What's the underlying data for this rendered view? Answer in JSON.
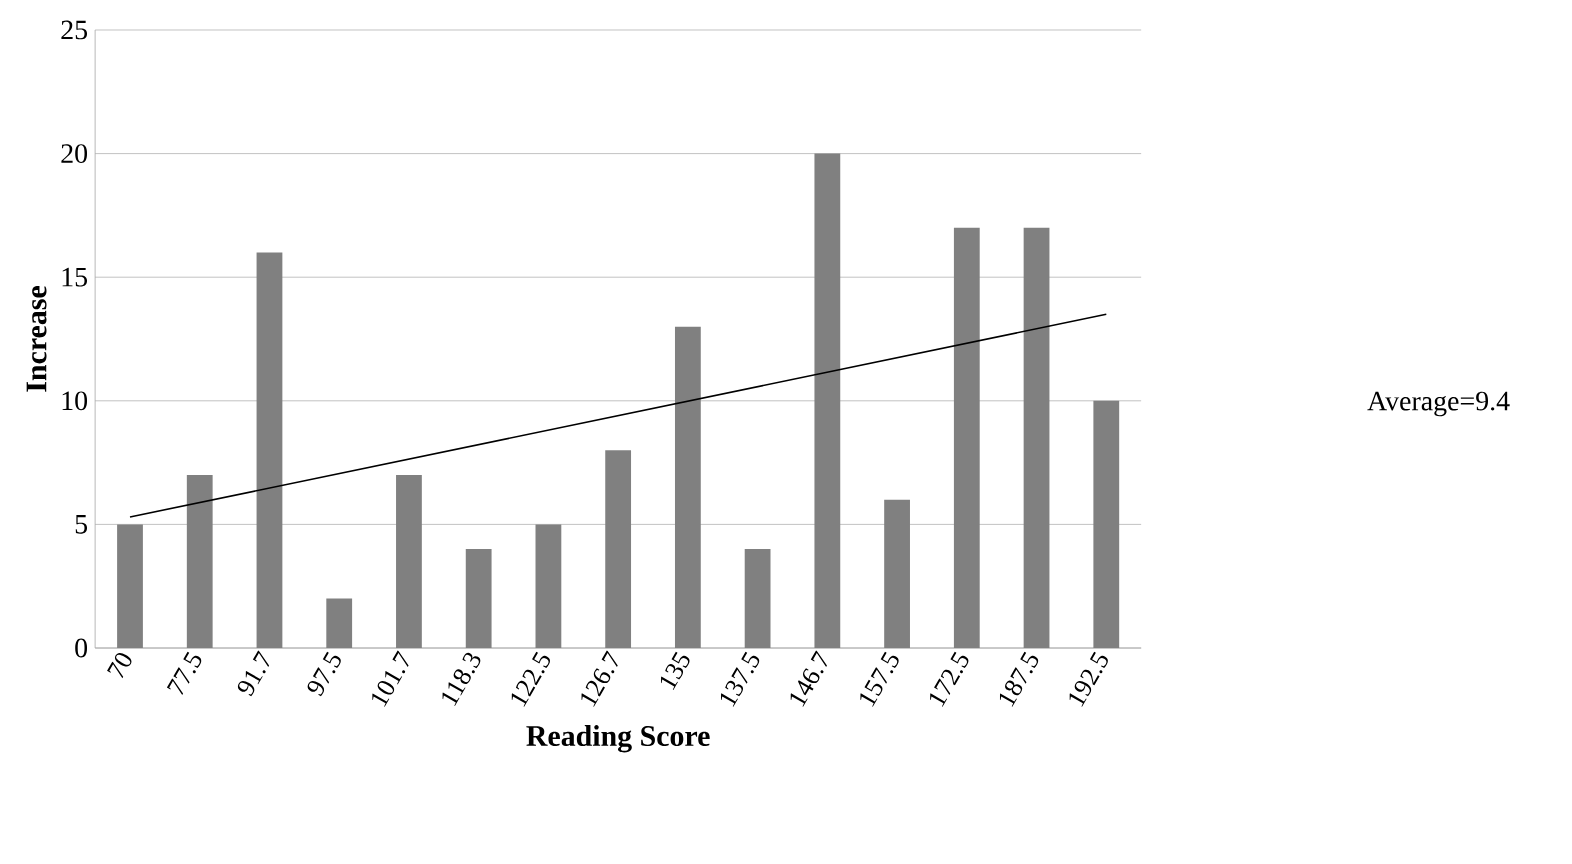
{
  "chart_data": {
    "type": "bar",
    "xlabel": "Reading Score",
    "ylabel": "Increase",
    "categories": [
      "70",
      "77.5",
      "91.7",
      "97.5",
      "101.7",
      "118.3",
      "122.5",
      "126.7",
      "135",
      "137.5",
      "146.7",
      "157.5",
      "172.5",
      "187.5",
      "192.5"
    ],
    "series": [
      {
        "color": "#808080",
        "values": [
          5,
          7,
          16,
          2,
          7,
          4,
          5,
          8,
          13,
          4,
          20,
          6,
          17,
          17,
          10
        ]
      },
      {
        "type": "line",
        "color": "#000000",
        "x": [
          "70",
          "192.5"
        ],
        "values": [
          5.3,
          13.5
        ]
      }
    ],
    "ylim": [
      0,
      25
    ],
    "yticks": [
      0,
      5,
      10,
      15,
      20,
      25
    ],
    "grid": "y",
    "annotations": [
      "Average=9.4"
    ]
  }
}
